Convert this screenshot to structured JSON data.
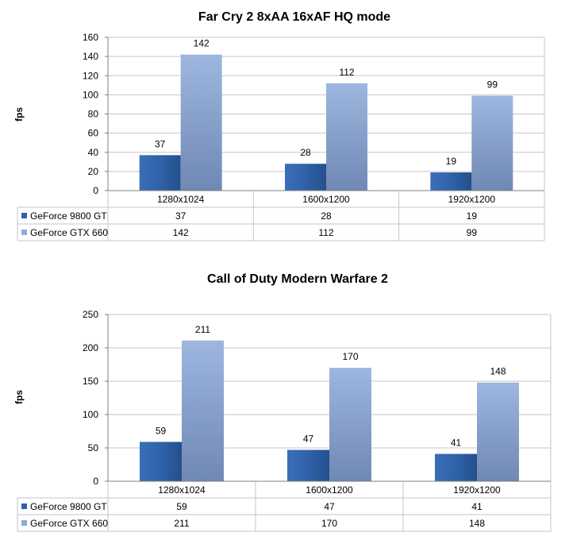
{
  "colors": {
    "series_1": "#2f62a8",
    "series_2": "#8faad6",
    "grid": "#c6c6c6",
    "axis": "#7f7f7f"
  },
  "chart_data": [
    {
      "type": "bar",
      "title": "Far Cry 2 8xAA 16xAF HQ mode",
      "xlabel": "",
      "ylabel": "fps",
      "ylim": [
        0,
        160
      ],
      "yticks": [
        0,
        20,
        40,
        60,
        80,
        100,
        120,
        140,
        160
      ],
      "grid": true,
      "legend": "data-table-left",
      "categories": [
        "1280x1024",
        "1600x1200",
        "1920x1200"
      ],
      "series": [
        {
          "name": "GeForce 9800 GT",
          "values": [
            37,
            28,
            19
          ]
        },
        {
          "name": "GeForce GTX 660",
          "values": [
            142,
            112,
            99
          ]
        }
      ]
    },
    {
      "type": "bar",
      "title": "Call of Duty Modern Warfare 2",
      "xlabel": "",
      "ylabel": "fps",
      "ylim": [
        0,
        250
      ],
      "yticks": [
        0,
        50,
        100,
        150,
        200,
        250
      ],
      "grid": true,
      "legend": "data-table-left",
      "categories": [
        "1280x1024",
        "1600x1200",
        "1920x1200"
      ],
      "series": [
        {
          "name": "GeForce 9800 GT",
          "values": [
            59,
            47,
            41
          ]
        },
        {
          "name": "GeForce GTX 660",
          "values": [
            211,
            170,
            148
          ]
        }
      ]
    }
  ]
}
